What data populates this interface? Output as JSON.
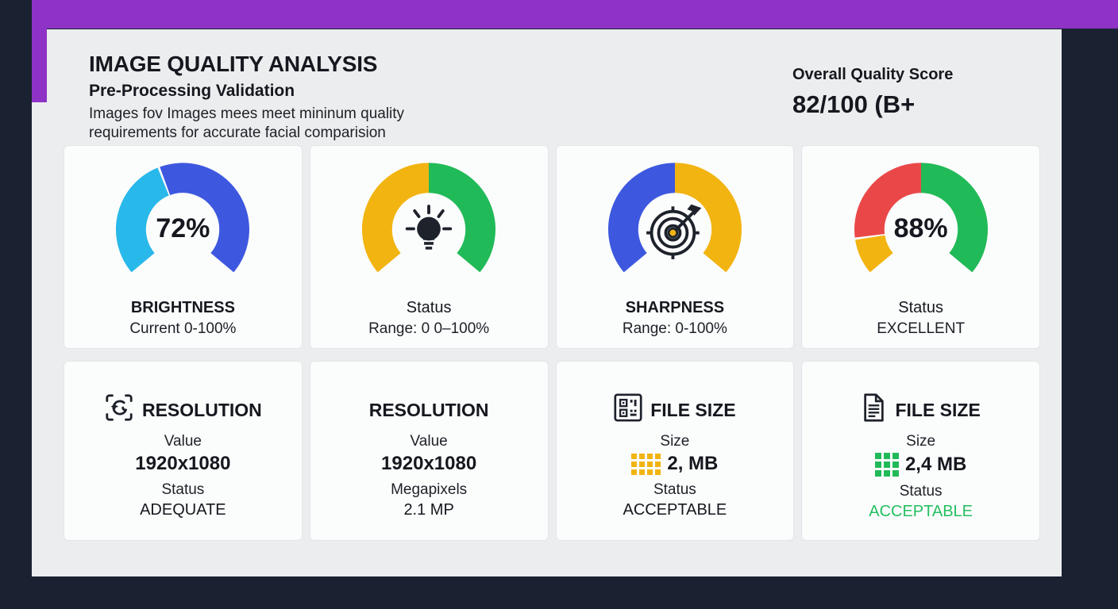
{
  "header": {
    "title": "IMAGE QUALITY ANALYSIS",
    "subtitle": "Pre-Processing Validation",
    "description_line1": "Images fov Images mees meet mininum quality",
    "description_line2": "requirements for accurate facial comparision",
    "score_label": "Overall Quality Score",
    "score_value": "82/100 (B+"
  },
  "colors": {
    "background": "#1a2231",
    "accent_purple": "#8e33c6",
    "panel": "#ecedee",
    "card": "#fbfcfc",
    "text_dark": "#15181e",
    "cyan": "#29b8ea",
    "blue": "#3d58df",
    "yellow": "#f2b411",
    "green": "#21ba58",
    "red": "#ea4848",
    "status_green": "#25c061"
  },
  "gauges": [
    {
      "name": "brightness",
      "center_text": "72%",
      "title": "BRIGHTNESS",
      "subtitle": "Current 0-100%",
      "segments": [
        {
          "color": "#29b8ea",
          "start": -130,
          "end": -22
        },
        {
          "color": "#3d58df",
          "start": -20,
          "end": 130
        }
      ]
    },
    {
      "name": "status-lightbulb",
      "center_text": "",
      "title": "Status",
      "subtitle": "Range: 0 0–100%",
      "segments": [
        {
          "color": "#f2b411",
          "start": -130,
          "end": 0
        },
        {
          "color": "#21ba58",
          "start": 0,
          "end": 130
        }
      ]
    },
    {
      "name": "sharpness",
      "center_text": "",
      "title": "SHARPNESS",
      "subtitle": "Range: 0-100%",
      "segments": [
        {
          "color": "#3d58df",
          "start": -130,
          "end": 0
        },
        {
          "color": "#f2b411",
          "start": 0,
          "end": 130
        }
      ]
    },
    {
      "name": "overall-status",
      "center_text": "88%",
      "title": "Status",
      "subtitle": "EXCELLENT",
      "segments": [
        {
          "color": "#f2b411",
          "start": -130,
          "end": -99
        },
        {
          "color": "#ea4848",
          "start": -97,
          "end": 0
        },
        {
          "color": "#21ba58",
          "start": 0,
          "end": 130
        }
      ]
    }
  ],
  "cards": [
    {
      "title": "RESOLUTION",
      "row1_label": "Value",
      "row1_value": "1920x1080",
      "row2_label": "Status",
      "row2_value": "ADEQUATE"
    },
    {
      "title": "RESOLUTION",
      "row1_label": "Value",
      "row1_value": "1920x1080",
      "row2_label": "Megapixels",
      "row2_value": "2.1 MP"
    },
    {
      "title": "FILE SIZE",
      "row1_label": "Size",
      "row1_value": "2, MB",
      "row2_label": "Status",
      "row2_value": "ACCEPTABLE"
    },
    {
      "title": "FILE SIZE",
      "row1_label": "Size",
      "row1_value": "2,4 MB",
      "row2_label": "Status",
      "row2_value": "ACCEPTABLE"
    }
  ],
  "chart_data": [
    {
      "type": "pie",
      "variant": "gauge-donut",
      "title": "BRIGHTNESS",
      "subtitle": "Current 0-100%",
      "center_label": "72%",
      "arc_span_degrees": 260,
      "segments": [
        {
          "color_name": "cyan",
          "fraction": 0.42
        },
        {
          "color_name": "blue",
          "fraction": 0.58
        }
      ]
    },
    {
      "type": "pie",
      "variant": "gauge-donut",
      "title": "Status",
      "subtitle": "Range: 0 0–100%",
      "center_label": "lightbulb-icon",
      "arc_span_degrees": 260,
      "segments": [
        {
          "color_name": "yellow",
          "fraction": 0.5
        },
        {
          "color_name": "green",
          "fraction": 0.5
        }
      ]
    },
    {
      "type": "pie",
      "variant": "gauge-donut",
      "title": "SHARPNESS",
      "subtitle": "Range: 0-100%",
      "center_label": "target-icon",
      "arc_span_degrees": 260,
      "segments": [
        {
          "color_name": "blue",
          "fraction": 0.5
        },
        {
          "color_name": "yellow",
          "fraction": 0.5
        }
      ]
    },
    {
      "type": "pie",
      "variant": "gauge-donut",
      "title": "Status",
      "subtitle": "EXCELLENT",
      "center_label": "88%",
      "arc_span_degrees": 260,
      "segments": [
        {
          "color_name": "yellow",
          "fraction": 0.12
        },
        {
          "color_name": "red",
          "fraction": 0.38
        },
        {
          "color_name": "green",
          "fraction": 0.5
        }
      ]
    }
  ]
}
